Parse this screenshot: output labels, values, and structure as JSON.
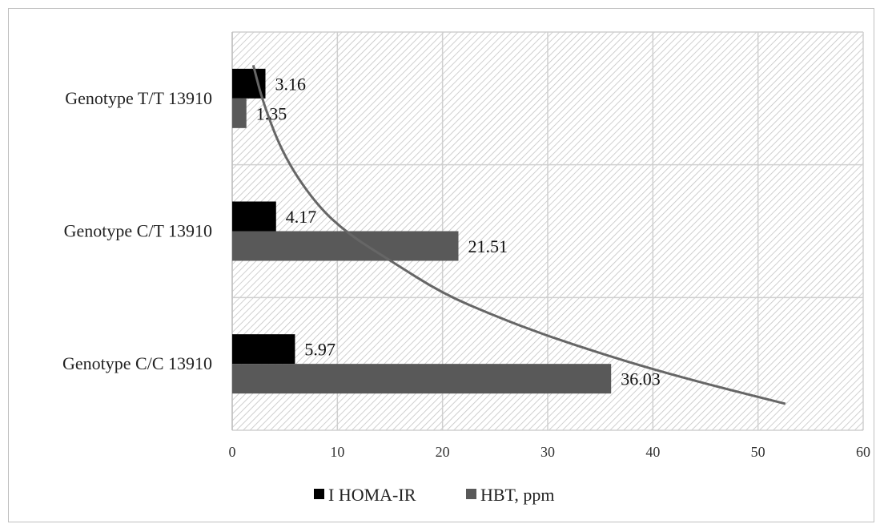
{
  "chart_data": {
    "type": "bar",
    "orientation": "horizontal",
    "categories": [
      "Genotype T/T 13910",
      "Genotype C/T 13910",
      "Genotype C/C 13910"
    ],
    "series": [
      {
        "name": "I HOMA-IR",
        "values": [
          3.16,
          4.17,
          5.97
        ],
        "color": "#000000"
      },
      {
        "name": "HBT, ppm",
        "values": [
          1.35,
          21.51,
          36.03
        ],
        "color": "#595959"
      }
    ],
    "xlim": [
      0,
      60
    ],
    "x_ticks": [
      0,
      10,
      20,
      30,
      40,
      50,
      60
    ],
    "trendline": {
      "type": "curve",
      "points": [
        [
          2.0,
          0.25
        ],
        [
          3.0,
          0.55
        ],
        [
          5.0,
          0.95
        ],
        [
          8.0,
          1.3
        ],
        [
          11.0,
          1.52
        ],
        [
          15.0,
          1.72
        ],
        [
          20.0,
          1.97
        ],
        [
          25.0,
          2.14
        ],
        [
          30.0,
          2.29
        ],
        [
          35.0,
          2.42
        ],
        [
          40.0,
          2.54
        ],
        [
          46.0,
          2.67
        ],
        [
          52.6,
          2.8
        ]
      ],
      "color": "#666666"
    },
    "grid": true,
    "plot_pattern": "diagonal-hatch",
    "legend_position": "bottom"
  }
}
